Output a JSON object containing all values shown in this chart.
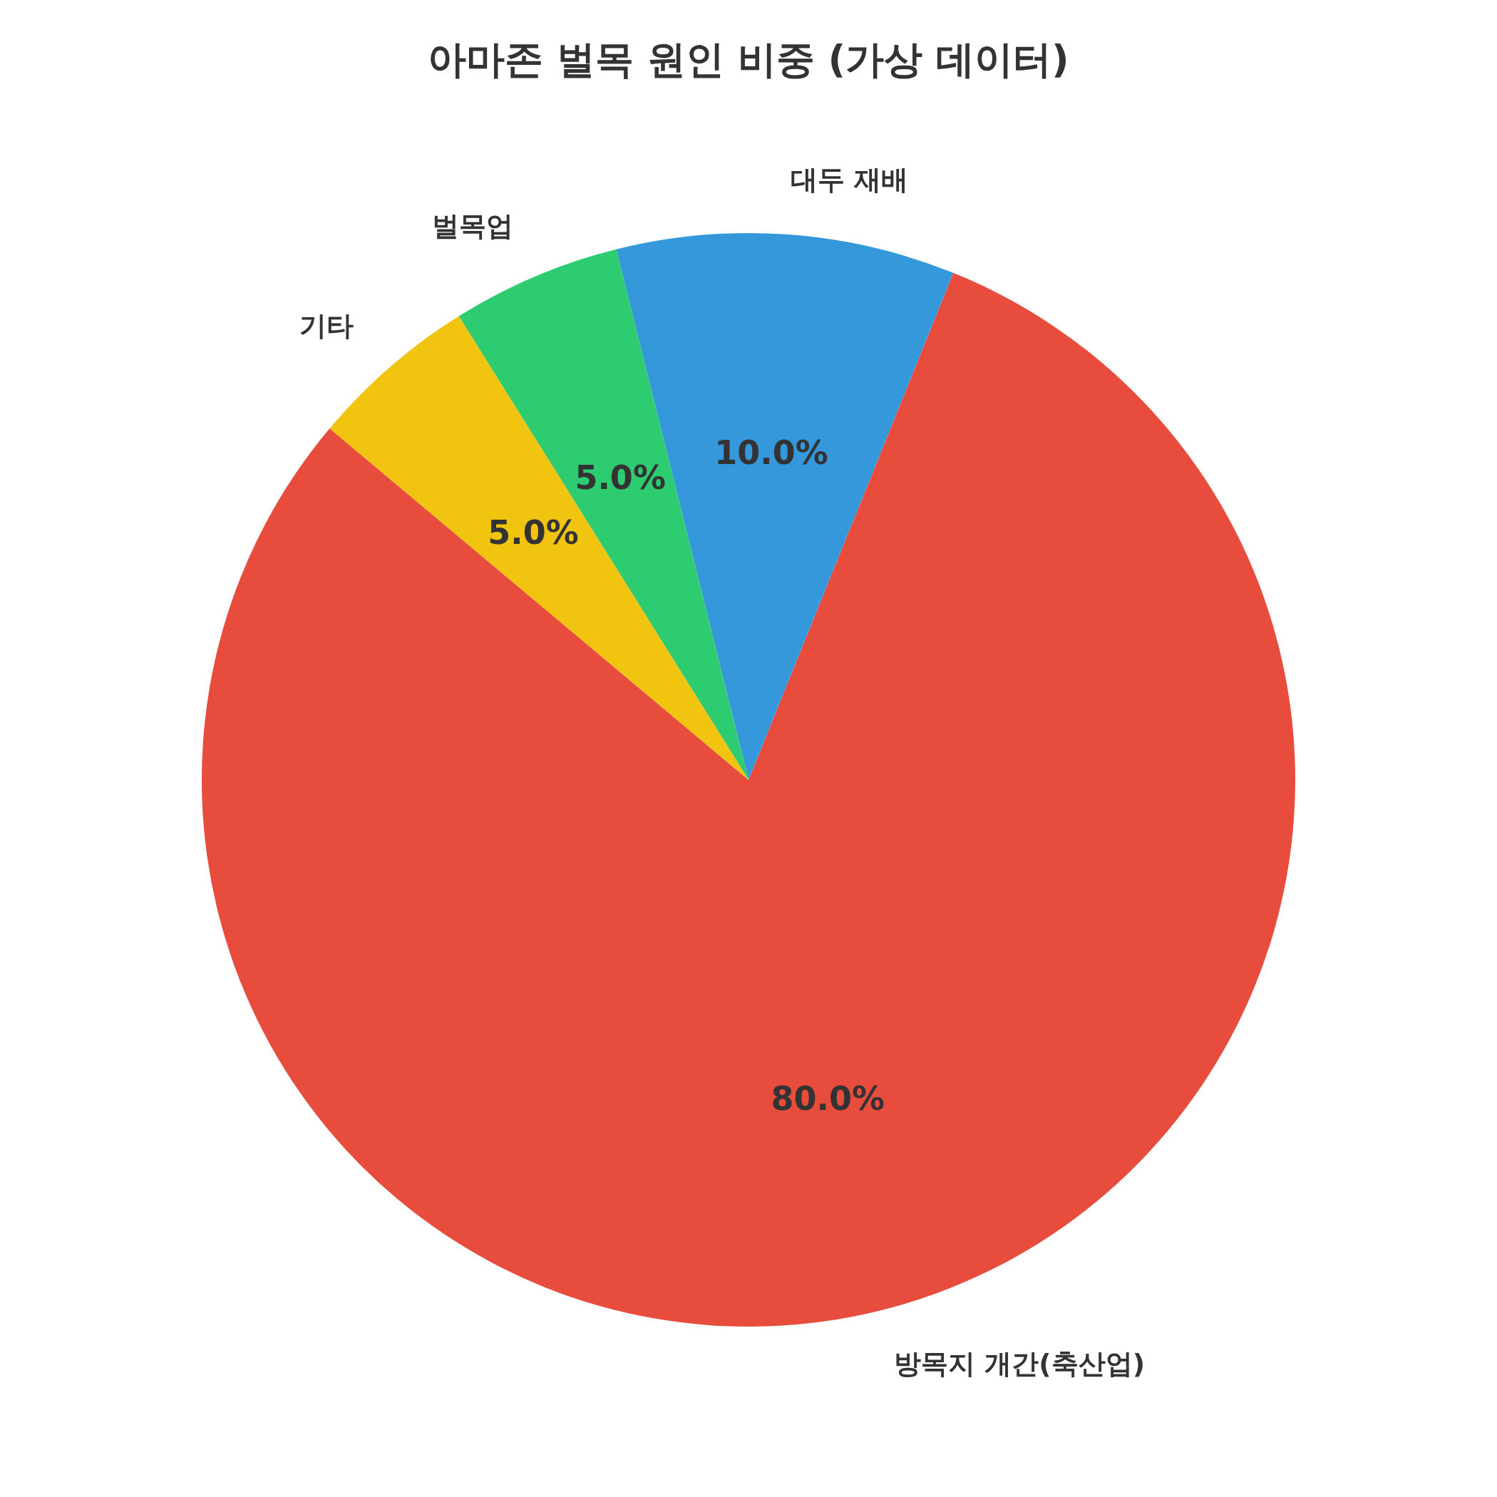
{
  "chart_data": {
    "type": "pie",
    "title": "아마존 벌목 원인 비중 (가상 데이터)",
    "categories": [
      "방목지 개간(축산업)",
      "대두 재배",
      "벌목업",
      "기타"
    ],
    "values": [
      80,
      10,
      5,
      5
    ],
    "colors": [
      "#e74c3c",
      "#3498db",
      "#2ecc71",
      "#f1c40f"
    ],
    "value_labels": [
      "80.0%",
      "10.0%",
      "5.0%",
      "5.0%"
    ]
  }
}
